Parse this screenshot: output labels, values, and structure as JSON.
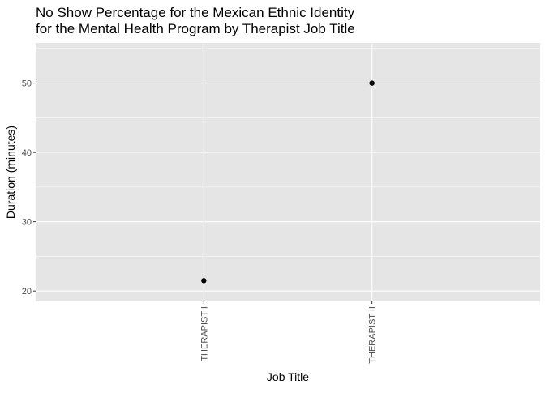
{
  "chart_data": {
    "type": "scatter",
    "title": "No Show Percentage for the Mexican Ethnic Identity\nfor the Mental Health Program by Therapist Job Title",
    "title_lines": [
      "No Show Percentage for the Mexican Ethnic Identity",
      "for the Mental Health Program by Therapist Job Title"
    ],
    "xlabel": "Job Title",
    "ylabel": "Duration (minutes)",
    "categories": [
      "THERAPIST I",
      "THERAPIST II"
    ],
    "values": [
      21.5,
      50
    ],
    "ylim": [
      18.5,
      55.8
    ],
    "yticks": [
      20,
      30,
      40,
      50
    ],
    "x_tick_rotation_deg": -90,
    "grid": true,
    "legend": "none",
    "colors": {
      "panel_background": "#e5e5e5",
      "grid": "#ffffff",
      "point": "#000000",
      "tick_label": "#4d4d4d",
      "tick_mark": "#333333"
    }
  }
}
